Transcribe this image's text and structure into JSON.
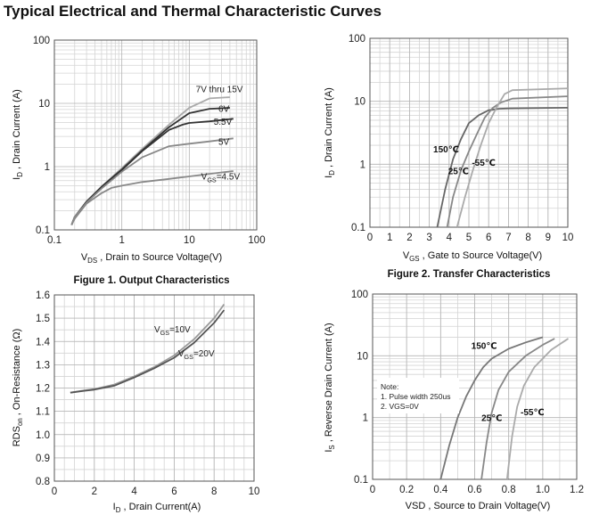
{
  "page": {
    "title": "Typical Electrical and Thermal Characteristic Curves"
  },
  "chart_data": [
    {
      "id": "c1",
      "type": "line",
      "title": "Figure 1. Output Characteristics",
      "xlabel": {
        "main": "V",
        "sub": "DS",
        "rest": " , Drain to Source Voltage(V)"
      },
      "ylabel": {
        "main": "I",
        "sub": "D",
        "rest": " , Drain Current (A)"
      },
      "xscale": "log",
      "yscale": "log",
      "xlim": [
        0.1,
        100
      ],
      "ylim": [
        0.1,
        100
      ],
      "xticks": [
        {
          "v": 0.1,
          "label": "0.1"
        },
        {
          "v": 1,
          "label": "1"
        },
        {
          "v": 10,
          "label": "10"
        },
        {
          "v": 100,
          "label": "100"
        }
      ],
      "yticks": [
        {
          "v": 0.1,
          "label": "0.1"
        },
        {
          "v": 1,
          "label": "1"
        },
        {
          "v": 10,
          "label": "10"
        },
        {
          "v": 100,
          "label": "100"
        }
      ],
      "grid": true,
      "series": [
        {
          "name": "7V thru 15V",
          "color": "#aaaaaa",
          "points": [
            [
              0.18,
              0.12
            ],
            [
              0.2,
              0.16
            ],
            [
              0.3,
              0.28
            ],
            [
              0.5,
              0.48
            ],
            [
              1,
              0.95
            ],
            [
              2,
              1.9
            ],
            [
              5,
              4.6
            ],
            [
              10,
              8.5
            ],
            [
              20,
              12
            ],
            [
              40,
              12.5
            ]
          ]
        },
        {
          "name": "6V",
          "color": "#333333",
          "points": [
            [
              0.18,
              0.12
            ],
            [
              0.2,
              0.16
            ],
            [
              0.3,
              0.28
            ],
            [
              0.5,
              0.48
            ],
            [
              1,
              0.9
            ],
            [
              2,
              1.8
            ],
            [
              5,
              4.2
            ],
            [
              10,
              7
            ],
            [
              20,
              8.2
            ],
            [
              40,
              8.5
            ]
          ]
        },
        {
          "name": "5.5V",
          "color": "#333333",
          "points": [
            [
              0.18,
              0.12
            ],
            [
              0.2,
              0.16
            ],
            [
              0.3,
              0.28
            ],
            [
              0.5,
              0.47
            ],
            [
              1,
              0.88
            ],
            [
              2,
              1.75
            ],
            [
              5,
              3.8
            ],
            [
              8,
              4.6
            ],
            [
              10,
              4.9
            ],
            [
              20,
              5.2
            ],
            [
              45,
              5.7
            ]
          ]
        },
        {
          "name": "5V",
          "color": "#888888",
          "points": [
            [
              0.18,
              0.12
            ],
            [
              0.2,
              0.16
            ],
            [
              0.3,
              0.27
            ],
            [
              0.5,
              0.45
            ],
            [
              1,
              0.83
            ],
            [
              2,
              1.4
            ],
            [
              5,
              2.1
            ],
            [
              10,
              2.3
            ],
            [
              20,
              2.5
            ],
            [
              45,
              2.8
            ]
          ]
        },
        {
          "name": "VGS=4.5V",
          "label_main": "V",
          "label_sub": "GS",
          "label_rest": "=4.5V",
          "color": "#888888",
          "points": [
            [
              0.18,
              0.12
            ],
            [
              0.2,
              0.15
            ],
            [
              0.3,
              0.26
            ],
            [
              0.5,
              0.38
            ],
            [
              0.7,
              0.46
            ],
            [
              1,
              0.5
            ],
            [
              2,
              0.57
            ],
            [
              5,
              0.64
            ],
            [
              10,
              0.7
            ],
            [
              20,
              0.77
            ],
            [
              45,
              0.85
            ]
          ]
        }
      ],
      "labels": [
        {
          "text": "7V thru 15V",
          "x": 12.5,
          "y": 15
        },
        {
          "text": "6V",
          "x": 27,
          "y": 7.3
        },
        {
          "text": "5.5V",
          "x": 23,
          "y": 4.6
        },
        {
          "text": "5V",
          "x": 27,
          "y": 2.2
        },
        {
          "main": "V",
          "sub": "GS",
          "rest": "=4.5V",
          "x": 15,
          "y": 0.62
        }
      ]
    },
    {
      "id": "c2",
      "type": "line",
      "title": "Figure 2. Transfer Characteristics",
      "xlabel": {
        "main": "V",
        "sub": "GS",
        "rest": " , Gate to Source Voltage(V)"
      },
      "ylabel": {
        "main": "I",
        "sub": "D",
        "rest": " , Drain Current (A)"
      },
      "xscale": "linear",
      "yscale": "log",
      "xlim": [
        0,
        10
      ],
      "ylim": [
        0.1,
        100
      ],
      "xticks": [
        {
          "v": 0,
          "label": "0"
        },
        {
          "v": 1,
          "label": "1"
        },
        {
          "v": 2,
          "label": "2"
        },
        {
          "v": 3,
          "label": "3"
        },
        {
          "v": 4,
          "label": "4"
        },
        {
          "v": 5,
          "label": "5"
        },
        {
          "v": 6,
          "label": "6"
        },
        {
          "v": 7,
          "label": "7"
        },
        {
          "v": 8,
          "label": "8"
        },
        {
          "v": 9,
          "label": "9"
        },
        {
          "v": 10,
          "label": "10"
        }
      ],
      "yticks": [
        {
          "v": 0.1,
          "label": "0.1"
        },
        {
          "v": 1,
          "label": "1"
        },
        {
          "v": 10,
          "label": "10"
        },
        {
          "v": 100,
          "label": "100"
        }
      ],
      "grid": true,
      "series": [
        {
          "name": "150℃",
          "color": "#666666",
          "points": [
            [
              3.4,
              0.1
            ],
            [
              3.8,
              0.4
            ],
            [
              4.2,
              1.2
            ],
            [
              4.6,
              2.5
            ],
            [
              5,
              4.5
            ],
            [
              5.5,
              6
            ],
            [
              6,
              7.2
            ],
            [
              6.5,
              7.6
            ],
            [
              7,
              7.7
            ],
            [
              10,
              7.9
            ]
          ]
        },
        {
          "name": "25℃",
          "color": "#888888",
          "points": [
            [
              3.9,
              0.1
            ],
            [
              4.2,
              0.3
            ],
            [
              4.6,
              0.8
            ],
            [
              5,
              1.6
            ],
            [
              5.4,
              3
            ],
            [
              5.8,
              5.5
            ],
            [
              6.2,
              7.8
            ],
            [
              6.6,
              9.5
            ],
            [
              7.2,
              11
            ],
            [
              10,
              12
            ]
          ]
        },
        {
          "name": "-55℃",
          "color": "#aaaaaa",
          "points": [
            [
              4.4,
              0.1
            ],
            [
              4.8,
              0.3
            ],
            [
              5.2,
              0.8
            ],
            [
              5.6,
              2
            ],
            [
              6,
              4.5
            ],
            [
              6.4,
              8
            ],
            [
              6.8,
              13
            ],
            [
              7.2,
              15
            ],
            [
              10,
              16
            ]
          ]
        }
      ],
      "labels": [
        {
          "text": "150℃",
          "x": 3.2,
          "y": 1.55
        },
        {
          "text": "25℃",
          "x": 3.95,
          "y": 0.7
        },
        {
          "text": "-55℃",
          "x": 5.15,
          "y": 0.95
        }
      ]
    },
    {
      "id": "c3",
      "type": "line",
      "title": "",
      "xlabel": {
        "main": "I",
        "sub": "D",
        "rest": " , Drain Current(A)"
      },
      "ylabel": {
        "main": "RDS",
        "sub": "on",
        "rest": " , On-Resistance (Ω)"
      },
      "xscale": "linear",
      "yscale": "linear",
      "xlim": [
        0,
        10
      ],
      "ylim": [
        0.8,
        1.6
      ],
      "xticks": [
        {
          "v": 0,
          "label": "0"
        },
        {
          "v": 2,
          "label": "2"
        },
        {
          "v": 4,
          "label": "4"
        },
        {
          "v": 6,
          "label": "6"
        },
        {
          "v": 8,
          "label": "8"
        },
        {
          "v": 10,
          "label": "10"
        }
      ],
      "yticks": [
        {
          "v": 0.8,
          "label": "0.8"
        },
        {
          "v": 0.9,
          "label": "0.9"
        },
        {
          "v": 1.0,
          "label": "1.0"
        },
        {
          "v": 1.1,
          "label": "1.1"
        },
        {
          "v": 1.2,
          "label": "1.2"
        },
        {
          "v": 1.3,
          "label": "1.3"
        },
        {
          "v": 1.4,
          "label": "1.4"
        },
        {
          "v": 1.5,
          "label": "1.5"
        },
        {
          "v": 1.6,
          "label": "1.6"
        }
      ],
      "grid": true,
      "series": [
        {
          "name": "VGS=10V",
          "color": "#999999",
          "points": [
            [
              0.8,
              1.18
            ],
            [
              1.5,
              1.19
            ],
            [
              2,
              1.195
            ],
            [
              3,
              1.215
            ],
            [
              4,
              1.25
            ],
            [
              5,
              1.29
            ],
            [
              6,
              1.34
            ],
            [
              7,
              1.41
            ],
            [
              8,
              1.5
            ],
            [
              8.5,
              1.56
            ]
          ]
        },
        {
          "name": "VGS=20V",
          "color": "#555555",
          "points": [
            [
              0.8,
              1.18
            ],
            [
              1.5,
              1.188
            ],
            [
              2,
              1.193
            ],
            [
              3,
              1.21
            ],
            [
              4,
              1.245
            ],
            [
              5,
              1.285
            ],
            [
              6,
              1.33
            ],
            [
              7,
              1.395
            ],
            [
              8,
              1.48
            ],
            [
              8.5,
              1.535
            ]
          ]
        }
      ],
      "labels": [
        {
          "main": "V",
          "sub": "GS",
          "rest": "=10V",
          "x": 5.0,
          "y": 1.44
        },
        {
          "main": "V",
          "sub": "GS",
          "rest": "=20V",
          "x": 6.2,
          "y": 1.335
        }
      ]
    },
    {
      "id": "c4",
      "type": "line",
      "title": "",
      "xlabel": {
        "main": "VSD",
        "sub": "",
        "rest": " , Source to Drain Voltage(V)"
      },
      "ylabel": {
        "main": "I",
        "sub": "S",
        "rest": " , Reverse Drain Current (A)"
      },
      "xscale": "linear",
      "yscale": "log",
      "xlim": [
        0,
        1.2
      ],
      "ylim": [
        0.1,
        100
      ],
      "xticks": [
        {
          "v": 0,
          "label": "0"
        },
        {
          "v": 0.2,
          "label": "0.2"
        },
        {
          "v": 0.4,
          "label": "0.4"
        },
        {
          "v": 0.6,
          "label": "0.6"
        },
        {
          "v": 0.8,
          "label": "0.8"
        },
        {
          "v": 1.0,
          "label": "1.0"
        },
        {
          "v": 1.2,
          "label": "1.2"
        }
      ],
      "yticks": [
        {
          "v": 0.1,
          "label": "0.1"
        },
        {
          "v": 1,
          "label": "1"
        },
        {
          "v": 10,
          "label": "10"
        },
        {
          "v": 100,
          "label": "100"
        }
      ],
      "grid": true,
      "series": [
        {
          "name": "150℃",
          "color": "#777777",
          "points": [
            [
              0.4,
              0.1
            ],
            [
              0.45,
              0.35
            ],
            [
              0.5,
              1
            ],
            [
              0.55,
              2.2
            ],
            [
              0.6,
              4
            ],
            [
              0.65,
              6.5
            ],
            [
              0.7,
              9
            ],
            [
              0.8,
              13
            ],
            [
              0.9,
              16.5
            ],
            [
              1.0,
              20
            ]
          ]
        },
        {
          "name": "25℃",
          "color": "#888888",
          "points": [
            [
              0.64,
              0.1
            ],
            [
              0.67,
              0.4
            ],
            [
              0.7,
              1.2
            ],
            [
              0.74,
              2.8
            ],
            [
              0.8,
              5.5
            ],
            [
              0.9,
              10
            ],
            [
              1.0,
              15
            ],
            [
              1.07,
              19
            ]
          ]
        },
        {
          "name": "-55℃",
          "color": "#aaaaaa",
          "points": [
            [
              0.79,
              0.1
            ],
            [
              0.82,
              0.5
            ],
            [
              0.85,
              1.5
            ],
            [
              0.89,
              3.3
            ],
            [
              0.95,
              6.5
            ],
            [
              1.05,
              12.5
            ],
            [
              1.15,
              19
            ]
          ]
        }
      ],
      "labels": [
        {
          "text": "150℃",
          "x": 0.58,
          "y": 13
        },
        {
          "text": "25℃",
          "x": 0.64,
          "y": 0.88
        },
        {
          "text": "-55℃",
          "x": 0.87,
          "y": 1.1
        }
      ],
      "note": [
        "Note:",
        "1. Pulse width 250us",
        "2. VGS=0V"
      ]
    }
  ]
}
